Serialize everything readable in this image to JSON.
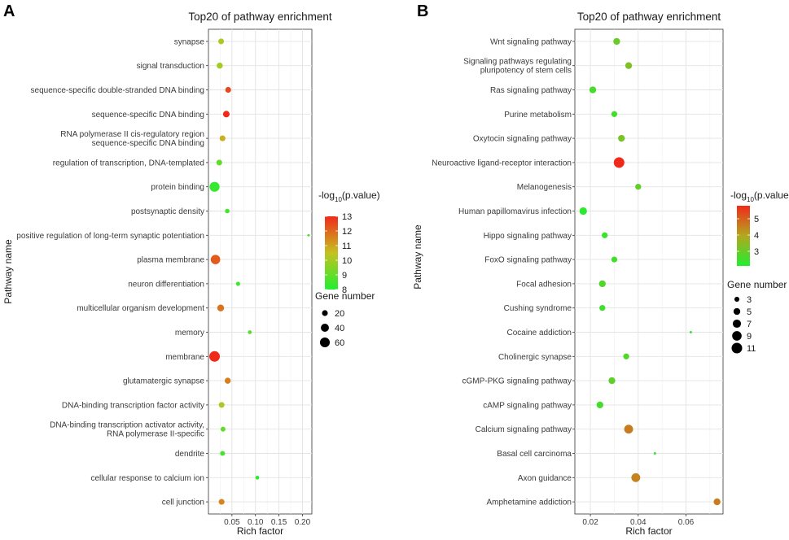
{
  "figure": {
    "panel_labels": [
      "A",
      "B"
    ]
  },
  "chart_data": [
    {
      "type": "scatter",
      "title": "Top20 of pathway enrichment",
      "xlabel": "Rich factor",
      "ylabel": "Pathway name",
      "xlim": [
        0.0,
        0.22
      ],
      "xticks": [
        0.05,
        0.1,
        0.15,
        0.2
      ],
      "xtick_labels": [
        "0.05",
        "0.10",
        "0.15",
        "0.20"
      ],
      "grid": true,
      "color_legend": {
        "title_main": "-log",
        "title_sub": "10",
        "title_rest": "(p.value)",
        "ticks": [
          13,
          12,
          11,
          10,
          9,
          8
        ],
        "range": [
          8,
          13
        ],
        "colors": [
          "#f02a1a",
          "#c5c21f",
          "#22ee30"
        ]
      },
      "size_legend": {
        "title": "Gene number",
        "values": [
          20,
          40,
          60
        ]
      },
      "size_range": [
        3,
        70
      ],
      "legend_position": "right",
      "points": [
        {
          "label": [
            "synapse"
          ],
          "x": 0.027,
          "size": 20,
          "color": 10.2
        },
        {
          "label": [
            "signal transduction"
          ],
          "x": 0.024,
          "size": 22,
          "color": 10.0
        },
        {
          "label": [
            "sequence-specific double-stranded DNA binding"
          ],
          "x": 0.042,
          "size": 20,
          "color": 12.5
        },
        {
          "label": [
            "sequence-specific DNA binding"
          ],
          "x": 0.038,
          "size": 26,
          "color": 13.0
        },
        {
          "label": [
            "RNA polymerase II cis-regulatory region",
            "sequence-specific DNA binding"
          ],
          "x": 0.03,
          "size": 20,
          "color": 10.8
        },
        {
          "label": [
            "regulation of transcription, DNA-templated"
          ],
          "x": 0.023,
          "size": 20,
          "color": 9.0
        },
        {
          "label": [
            "protein binding"
          ],
          "x": 0.013,
          "size": 62,
          "color": 8.3
        },
        {
          "label": [
            "postsynaptic density"
          ],
          "x": 0.04,
          "size": 12,
          "color": 8.5
        },
        {
          "label": [
            "positive regulation of long-term synaptic potentiation"
          ],
          "x": 0.213,
          "size": 3,
          "color": 8.8
        },
        {
          "label": [
            "plasma membrane"
          ],
          "x": 0.015,
          "size": 55,
          "color": 12.2
        },
        {
          "label": [
            "neuron differentiation"
          ],
          "x": 0.063,
          "size": 10,
          "color": 8.4
        },
        {
          "label": [
            "multicellular organism development"
          ],
          "x": 0.026,
          "size": 28,
          "color": 11.8
        },
        {
          "label": [
            "memory"
          ],
          "x": 0.088,
          "size": 8,
          "color": 8.8
        },
        {
          "label": [
            "membrane"
          ],
          "x": 0.013,
          "size": 70,
          "color": 13.2
        },
        {
          "label": [
            "glutamatergic synapse"
          ],
          "x": 0.041,
          "size": 22,
          "color": 11.6
        },
        {
          "label": [
            "DNA-binding transcription factor activity"
          ],
          "x": 0.028,
          "size": 20,
          "color": 10.2
        },
        {
          "label": [
            "DNA-binding transcription activator activity,",
            "RNA polymerase II-specific"
          ],
          "x": 0.031,
          "size": 14,
          "color": 9.0
        },
        {
          "label": [
            "dendrite"
          ],
          "x": 0.03,
          "size": 14,
          "color": 8.5
        },
        {
          "label": [
            "cellular response to calcium ion"
          ],
          "x": 0.104,
          "size": 8,
          "color": 8.2
        },
        {
          "label": [
            "cell junction"
          ],
          "x": 0.028,
          "size": 20,
          "color": 11.5
        }
      ]
    },
    {
      "type": "scatter",
      "title": "Top20 of pathway enrichment",
      "xlabel": "Rich factor",
      "ylabel": "Pathway name",
      "xlim": [
        0.0135,
        0.0755
      ],
      "xticks": [
        0.02,
        0.04,
        0.06
      ],
      "xtick_labels": [
        "0.02",
        "0.04",
        "0.06"
      ],
      "grid": true,
      "color_legend": {
        "title_main": "-log",
        "title_sub": "10",
        "title_rest": "(p.value)",
        "ticks": [
          5,
          4,
          3
        ],
        "range": [
          2.1,
          5.8
        ],
        "colors": [
          "#22ee30",
          "#b2a81e",
          "#f02a1a"
        ]
      },
      "size_legend": {
        "title": "Gene number",
        "values": [
          3,
          5,
          7,
          9,
          11
        ]
      },
      "size_range": [
        1,
        11
      ],
      "legend_position": "right",
      "points": [
        {
          "label": [
            "Wnt signaling pathway"
          ],
          "x": 0.031,
          "size": 5,
          "color": 3.0
        },
        {
          "label": [
            "Signaling pathways regulating",
            "pluripotency of stem cells"
          ],
          "x": 0.036,
          "size": 5,
          "color": 3.3
        },
        {
          "label": [
            "Ras signaling pathway"
          ],
          "x": 0.021,
          "size": 5,
          "color": 2.6
        },
        {
          "label": [
            "Purine metabolism"
          ],
          "x": 0.03,
          "size": 4,
          "color": 2.5
        },
        {
          "label": [
            "Oxytocin signaling pathway"
          ],
          "x": 0.033,
          "size": 5,
          "color": 3.2
        },
        {
          "label": [
            "Neuroactive ligand-receptor interaction"
          ],
          "x": 0.032,
          "size": 11,
          "color": 5.8
        },
        {
          "label": [
            "Melanogenesis"
          ],
          "x": 0.04,
          "size": 4,
          "color": 2.9
        },
        {
          "label": [
            "Human papillomavirus infection"
          ],
          "x": 0.017,
          "size": 6,
          "color": 2.2
        },
        {
          "label": [
            "Hippo signaling pathway"
          ],
          "x": 0.026,
          "size": 4,
          "color": 2.4
        },
        {
          "label": [
            "FoxO signaling pathway"
          ],
          "x": 0.03,
          "size": 4,
          "color": 2.5
        },
        {
          "label": [
            "Focal adhesion"
          ],
          "x": 0.025,
          "size": 5,
          "color": 2.7
        },
        {
          "label": [
            "Cushing syndrome"
          ],
          "x": 0.025,
          "size": 4,
          "color": 2.5
        },
        {
          "label": [
            "Cocaine addiction"
          ],
          "x": 0.062,
          "size": 1,
          "color": 2.3
        },
        {
          "label": [
            "Cholinergic synapse"
          ],
          "x": 0.035,
          "size": 4,
          "color": 2.7
        },
        {
          "label": [
            "cGMP-PKG signaling pathway"
          ],
          "x": 0.029,
          "size": 5,
          "color": 2.9
        },
        {
          "label": [
            "cAMP signaling pathway"
          ],
          "x": 0.024,
          "size": 5,
          "color": 2.6
        },
        {
          "label": [
            "Calcium signaling pathway"
          ],
          "x": 0.036,
          "size": 8,
          "color": 4.6
        },
        {
          "label": [
            "Basal cell carcinoma"
          ],
          "x": 0.047,
          "size": 1,
          "color": 2.3
        },
        {
          "label": [
            "Axon guidance"
          ],
          "x": 0.039,
          "size": 8,
          "color": 4.5
        },
        {
          "label": [
            "Amphetamine addiction"
          ],
          "x": 0.073,
          "size": 5,
          "color": 4.6
        }
      ]
    }
  ]
}
